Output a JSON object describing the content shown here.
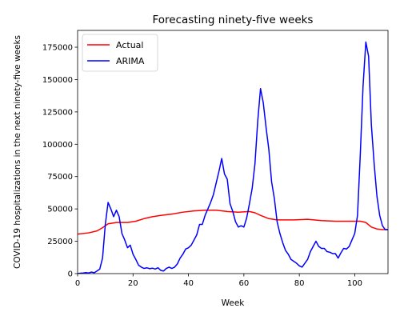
{
  "chart_data": {
    "type": "line",
    "title": "Forecasting ninety-five weeks",
    "xlabel": "Week",
    "ylabel": "COVID-19 hospitalizations in the next ninety-five weeks",
    "xlim": [
      0,
      112
    ],
    "ylim": [
      0,
      188000
    ],
    "xticks": [
      0,
      20,
      40,
      60,
      80,
      100
    ],
    "yticks": [
      0,
      25000,
      50000,
      75000,
      100000,
      125000,
      150000,
      175000
    ],
    "grid": false,
    "legend_position": "top-left",
    "series": [
      {
        "name": "Actual",
        "color": "#ff0000",
        "x": [
          0,
          4,
          7,
          9,
          11,
          14,
          18,
          21,
          24,
          27,
          30,
          34,
          38,
          42,
          46,
          50,
          54,
          58,
          62,
          64,
          66,
          69,
          72,
          78,
          83,
          88,
          93,
          98,
          100,
          102,
          104,
          106,
          108,
          110,
          112
        ],
        "y": [
          30500,
          31500,
          33000,
          35500,
          38500,
          39500,
          39500,
          40500,
          42500,
          44000,
          45000,
          46000,
          47500,
          48500,
          49000,
          49000,
          48000,
          47500,
          48000,
          47000,
          45000,
          42500,
          41500,
          41500,
          42000,
          41000,
          40500,
          40500,
          40500,
          40500,
          39500,
          36000,
          34500,
          34000,
          34000
        ]
      },
      {
        "name": "ARIMA",
        "color": "#0000ff",
        "x": [
          0,
          1,
          2,
          3,
          4,
          5,
          6,
          7,
          8,
          9,
          10,
          11,
          12,
          13,
          14,
          15,
          16,
          17,
          18,
          19,
          20,
          21,
          22,
          23,
          24,
          25,
          26,
          27,
          28,
          29,
          30,
          31,
          32,
          33,
          34,
          35,
          36,
          37,
          38,
          39,
          40,
          41,
          42,
          43,
          44,
          45,
          46,
          47,
          48,
          49,
          50,
          51,
          52,
          53,
          54,
          55,
          56,
          57,
          58,
          59,
          60,
          61,
          62,
          63,
          64,
          65,
          66,
          67,
          68,
          69,
          70,
          71,
          72,
          73,
          74,
          75,
          76,
          77,
          78,
          79,
          80,
          81,
          82,
          83,
          84,
          85,
          86,
          87,
          88,
          89,
          90,
          91,
          92,
          93,
          94,
          95,
          96,
          97,
          98,
          99,
          100,
          101,
          102,
          103,
          104,
          105,
          106,
          107,
          108,
          109,
          110,
          111,
          112
        ],
        "y": [
          0,
          300,
          500,
          800,
          500,
          1200,
          700,
          2000,
          3500,
          12000,
          38000,
          55000,
          50000,
          44000,
          49000,
          44000,
          31000,
          26000,
          20000,
          22000,
          15000,
          11000,
          6500,
          5000,
          4000,
          4500,
          3800,
          4200,
          3500,
          4500,
          2500,
          2000,
          4000,
          5000,
          4000,
          5000,
          7500,
          12000,
          15000,
          19000,
          20000,
          22000,
          26000,
          30000,
          38000,
          38000,
          45000,
          50000,
          55000,
          61000,
          70000,
          79000,
          89000,
          77000,
          73000,
          54000,
          48000,
          40000,
          36000,
          37000,
          36000,
          43000,
          54000,
          66000,
          85000,
          118000,
          143000,
          132000,
          113000,
          96000,
          71000,
          58000,
          40000,
          31000,
          24000,
          18000,
          15000,
          11000,
          9500,
          8000,
          6000,
          5000,
          8000,
          11000,
          17000,
          21000,
          25000,
          21000,
          19500,
          19500,
          17000,
          16500,
          15500,
          15500,
          12000,
          16000,
          19500,
          19000,
          21000,
          26000,
          31000,
          45000,
          92000,
          145000,
          179000,
          168000,
          115000,
          85000,
          60000,
          45000,
          37000,
          34000,
          34000
        ]
      }
    ]
  }
}
